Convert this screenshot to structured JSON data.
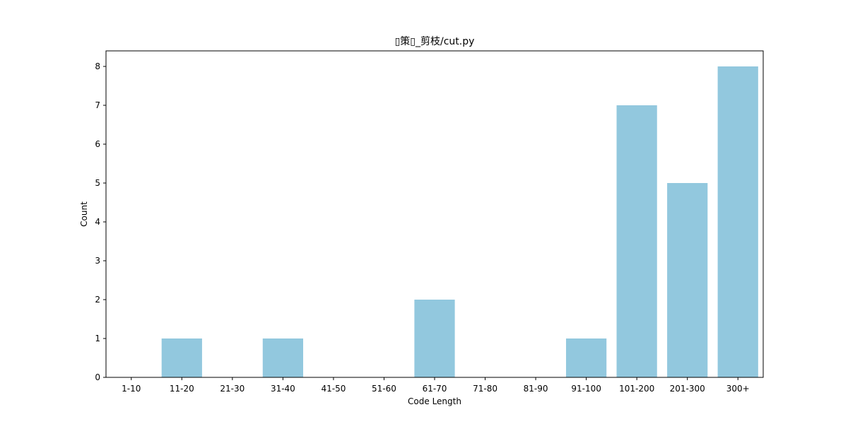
{
  "chart_data": {
    "type": "bar",
    "title": "▯策▯_剪枝/cut.py",
    "xlabel": "Code Length",
    "ylabel": "Count",
    "categories": [
      "1-10",
      "11-20",
      "21-30",
      "31-40",
      "41-50",
      "51-60",
      "61-70",
      "71-80",
      "81-90",
      "91-100",
      "101-200",
      "201-300",
      "300+"
    ],
    "values": [
      0,
      1,
      0,
      1,
      0,
      0,
      2,
      0,
      0,
      1,
      7,
      5,
      8
    ],
    "ylim": [
      0,
      8.4
    ],
    "yticks": [
      0,
      1,
      2,
      3,
      4,
      5,
      6,
      7,
      8
    ],
    "bar_color": "#92c8de",
    "grid": false,
    "legend": "none"
  }
}
